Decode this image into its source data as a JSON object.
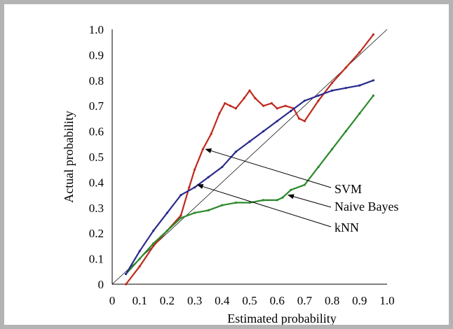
{
  "chart_data": {
    "type": "line",
    "title": "",
    "xlabel": "Estimated probability",
    "ylabel": "Actual probability",
    "xlim": [
      0,
      1.0
    ],
    "ylim": [
      0,
      1.0
    ],
    "x_ticks": [
      "0",
      "0.1",
      "0.2",
      "0.3",
      "0.4",
      "0.5",
      "0.6",
      "0.7",
      "0.8",
      "0.9",
      "1.0"
    ],
    "y_ticks": [
      "0",
      "0.1",
      "0.2",
      "0.3",
      "0.4",
      "0.5",
      "0.6",
      "0.7",
      "0.8",
      "0.9",
      "1.0"
    ],
    "grid": false,
    "reference_line": {
      "x": [
        0,
        1.0
      ],
      "y": [
        0,
        1.0
      ],
      "color": "#000000"
    },
    "series": [
      {
        "name": "SVM",
        "color": "#c0281c",
        "x": [
          0.05,
          0.1,
          0.15,
          0.2,
          0.25,
          0.28,
          0.3,
          0.33,
          0.36,
          0.39,
          0.41,
          0.43,
          0.45,
          0.48,
          0.5,
          0.52,
          0.55,
          0.58,
          0.6,
          0.63,
          0.66,
          0.68,
          0.7,
          0.75,
          0.8,
          0.85,
          0.9,
          0.95
        ],
        "y": [
          0.0,
          0.07,
          0.15,
          0.21,
          0.27,
          0.38,
          0.45,
          0.53,
          0.59,
          0.67,
          0.71,
          0.7,
          0.69,
          0.73,
          0.76,
          0.73,
          0.7,
          0.71,
          0.69,
          0.7,
          0.69,
          0.65,
          0.64,
          0.72,
          0.79,
          0.85,
          0.91,
          0.98
        ]
      },
      {
        "name": "Naive Bayes",
        "color": "#2a8a2a",
        "x": [
          0.05,
          0.1,
          0.15,
          0.2,
          0.25,
          0.3,
          0.35,
          0.4,
          0.45,
          0.5,
          0.55,
          0.6,
          0.62,
          0.65,
          0.7,
          0.75,
          0.8,
          0.85,
          0.9,
          0.95
        ],
        "y": [
          0.04,
          0.1,
          0.16,
          0.21,
          0.26,
          0.28,
          0.29,
          0.31,
          0.32,
          0.32,
          0.33,
          0.33,
          0.34,
          0.37,
          0.39,
          0.46,
          0.53,
          0.6,
          0.67,
          0.74
        ]
      },
      {
        "name": "kNN",
        "color": "#2a2a8e",
        "x": [
          0.05,
          0.1,
          0.15,
          0.2,
          0.25,
          0.3,
          0.35,
          0.4,
          0.45,
          0.5,
          0.55,
          0.6,
          0.65,
          0.7,
          0.75,
          0.8,
          0.85,
          0.9,
          0.95
        ],
        "y": [
          0.04,
          0.13,
          0.21,
          0.28,
          0.35,
          0.38,
          0.42,
          0.46,
          0.52,
          0.56,
          0.6,
          0.64,
          0.68,
          0.72,
          0.74,
          0.76,
          0.77,
          0.78,
          0.8
        ]
      }
    ],
    "annotations": [
      {
        "label": "SVM",
        "series": "SVM",
        "target": [
          0.34,
          0.53
        ]
      },
      {
        "label": "Naive Bayes",
        "series": "Naive Bayes",
        "target": [
          0.64,
          0.35
        ]
      },
      {
        "label": "kNN",
        "series": "kNN",
        "target": [
          0.31,
          0.39
        ]
      }
    ]
  }
}
